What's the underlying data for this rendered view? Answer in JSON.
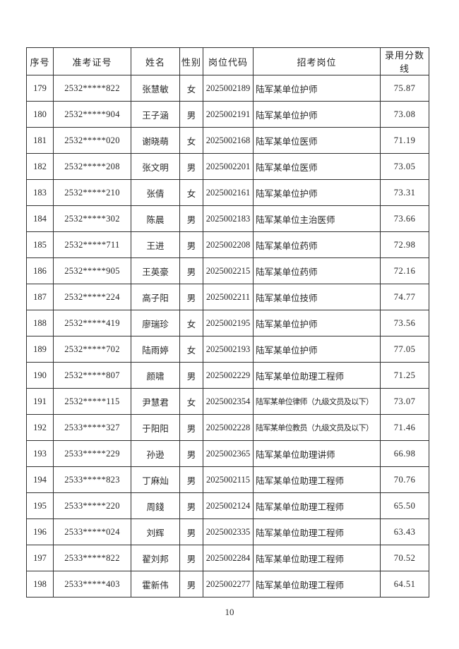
{
  "page": {
    "number": "10"
  },
  "colors": {
    "background": "#ffffff",
    "border": "#303030",
    "text": "#262626"
  },
  "table": {
    "headers": [
      "序号",
      "准考证号",
      "姓名",
      "性别",
      "岗位代码",
      "招考岗位",
      "录用分数线"
    ],
    "rows": [
      [
        "179",
        "2532*****822",
        "张慧敏",
        "女",
        "2025002189",
        "陆军某单位护师",
        "75.87"
      ],
      [
        "180",
        "2532*****904",
        "王子涵",
        "男",
        "2025002191",
        "陆军某单位护师",
        "73.08"
      ],
      [
        "181",
        "2532*****020",
        "谢晓萌",
        "女",
        "2025002168",
        "陆军某单位医师",
        "71.19"
      ],
      [
        "182",
        "2532*****208",
        "张文明",
        "男",
        "2025002201",
        "陆军某单位医师",
        "73.05"
      ],
      [
        "183",
        "2532*****210",
        "张倩",
        "女",
        "2025002161",
        "陆军某单位护师",
        "73.31"
      ],
      [
        "184",
        "2532*****302",
        "陈晨",
        "男",
        "2025002183",
        "陆军某单位主治医师",
        "73.66"
      ],
      [
        "185",
        "2532*****711",
        "王进",
        "男",
        "2025002208",
        "陆军某单位药师",
        "72.98"
      ],
      [
        "186",
        "2532*****905",
        "王英豪",
        "男",
        "2025002215",
        "陆军某单位药师",
        "72.16"
      ],
      [
        "187",
        "2532*****224",
        "高子阳",
        "男",
        "2025002211",
        "陆军某单位技师",
        "74.77"
      ],
      [
        "188",
        "2532*****419",
        "廖瑞珍",
        "女",
        "2025002195",
        "陆军某单位护师",
        "73.56"
      ],
      [
        "189",
        "2532*****702",
        "陆雨婷",
        "女",
        "2025002193",
        "陆军某单位护师",
        "77.05"
      ],
      [
        "190",
        "2532*****807",
        "颜啸",
        "男",
        "2025002229",
        "陆军某单位助理工程师",
        "71.25"
      ],
      [
        "191",
        "2532*****115",
        "尹慧君",
        "女",
        "2025002354",
        "陆军某单位律师（九级文员及以下）",
        "73.07"
      ],
      [
        "192",
        "2533*****327",
        "于阳阳",
        "男",
        "2025002228",
        "陆军某单位教员（九级文员及以下）",
        "71.46"
      ],
      [
        "193",
        "2533*****229",
        "孙逊",
        "男",
        "2025002365",
        "陆军某单位助理讲师",
        "66.98"
      ],
      [
        "194",
        "2533*****823",
        "丁麻灿",
        "男",
        "2025002115",
        "陆军某单位助理工程师",
        "70.76"
      ],
      [
        "195",
        "2533*****220",
        "周錢",
        "男",
        "2025002124",
        "陆军某单位助理工程师",
        "65.50"
      ],
      [
        "196",
        "2533*****024",
        "刘辉",
        "男",
        "2025002335",
        "陆军某单位助理工程师",
        "63.43"
      ],
      [
        "197",
        "2533*****822",
        "翟刘邦",
        "男",
        "2025002284",
        "陆军某单位助理工程师",
        "70.52"
      ],
      [
        "198",
        "2533*****403",
        "霍新伟",
        "男",
        "2025002277",
        "陆军某单位助理工程师",
        "64.51"
      ]
    ]
  }
}
